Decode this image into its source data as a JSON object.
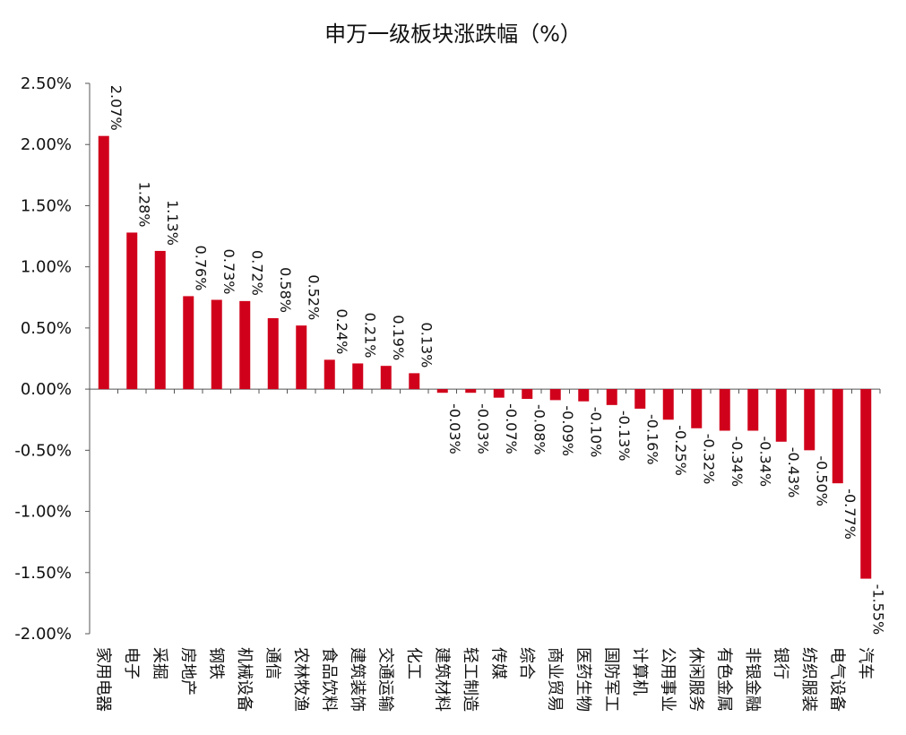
{
  "chart_data": {
    "type": "bar",
    "title": "申万一级板块涨跌幅（%）",
    "xlabel": "",
    "ylabel": "",
    "ylim": [
      -2.0,
      2.5
    ],
    "yticks": [
      "2.50%",
      "2.00%",
      "1.50%",
      "1.00%",
      "0.50%",
      "0.00%",
      "-0.50%",
      "-1.00%",
      "-1.50%",
      "-2.00%"
    ],
    "ytick_values": [
      2.5,
      2.0,
      1.5,
      1.0,
      0.5,
      0.0,
      -0.5,
      -1.0,
      -1.5,
      -2.0
    ],
    "grid": false,
    "bar_color": "#d0021b",
    "categories": [
      "家用电器",
      "电子",
      "采掘",
      "房地产",
      "钢铁",
      "机械设备",
      "通信",
      "农林牧渔",
      "食品饮料",
      "建筑装饰",
      "交通运输",
      "化工",
      "建筑材料",
      "轻工制造",
      "传媒",
      "综合",
      "商业贸易",
      "医药生物",
      "国防军工",
      "计算机",
      "公用事业",
      "休闲服务",
      "有色金属",
      "非银金融",
      "银行",
      "纺织服装",
      "电气设备",
      "汽车"
    ],
    "values": [
      2.07,
      1.28,
      1.13,
      0.76,
      0.73,
      0.72,
      0.58,
      0.52,
      0.24,
      0.21,
      0.19,
      0.13,
      -0.03,
      -0.03,
      -0.07,
      -0.08,
      -0.09,
      -0.1,
      -0.13,
      -0.16,
      -0.25,
      -0.32,
      -0.34,
      -0.34,
      -0.43,
      -0.5,
      -0.77,
      -1.55
    ],
    "data_labels": [
      "2.07%",
      "1.28%",
      "1.13%",
      "0.76%",
      "0.73%",
      "0.72%",
      "0.58%",
      "0.52%",
      "0.24%",
      "0.21%",
      "0.19%",
      "0.13%",
      "-0.03%",
      "-0.03%",
      "-0.07%",
      "-0.08%",
      "-0.09%",
      "-0.10%",
      "-0.13%",
      "-0.16%",
      "-0.25%",
      "-0.32%",
      "-0.34%",
      "-0.34%",
      "-0.43%",
      "-0.50%",
      "-0.77%",
      "-1.55%"
    ]
  }
}
